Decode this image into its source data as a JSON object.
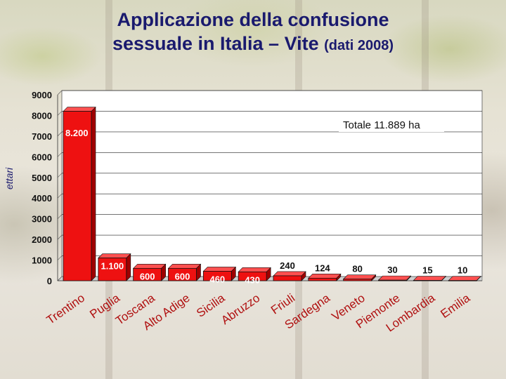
{
  "title": {
    "line1": "Applicazione della confusione",
    "line2_main": "sessuale in Italia – Vite ",
    "line2_sub": "(dati 2008)"
  },
  "chart_data": {
    "type": "bar",
    "ylabel": "ettari",
    "ylim": [
      0,
      9000
    ],
    "yticks": [
      0,
      1000,
      2000,
      3000,
      4000,
      5000,
      6000,
      7000,
      8000,
      9000
    ],
    "annotation": "Totale 11.889 ha",
    "categories": [
      "Trentino",
      "Puglia",
      "Toscana",
      "Alto Adige",
      "Sicilia",
      "Abruzzo",
      "Friuli",
      "Sardegna",
      "Veneto",
      "Piemonte",
      "Lombardia",
      "Emilia"
    ],
    "values": [
      8200,
      1100,
      600,
      600,
      460,
      430,
      240,
      124,
      80,
      30,
      15,
      10
    ],
    "value_labels": [
      "8.200",
      "1.100",
      "600",
      "600",
      "460",
      "430",
      "240",
      "124",
      "80",
      "30",
      "15",
      "10"
    ],
    "bar_color": "#ee1111",
    "grid": true
  }
}
